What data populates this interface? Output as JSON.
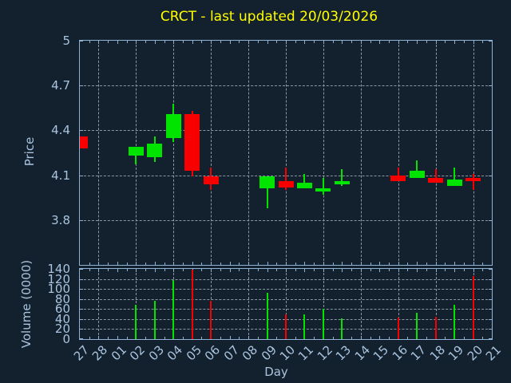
{
  "title": "CRCT - last updated 20/03/2026",
  "x_axis": {
    "label": "Day",
    "categories": [
      "27",
      "28",
      "01",
      "02",
      "03",
      "04",
      "05",
      "06",
      "07",
      "08",
      "09",
      "10",
      "11",
      "12",
      "13",
      "14",
      "15",
      "16",
      "17",
      "18",
      "19",
      "20",
      "21"
    ]
  },
  "price_axis": {
    "label": "Price",
    "tick_labels": [
      "5",
      "4.7",
      "4.4",
      "4.1",
      "3.8"
    ],
    "tick_values": [
      5.0,
      4.7,
      4.4,
      4.1,
      3.8
    ],
    "range": [
      3.5,
      5.0
    ]
  },
  "volume_axis": {
    "label": "Volume (0000)",
    "tick_labels": [
      "140",
      "120",
      "100",
      "80",
      "60",
      "40",
      "20",
      "0"
    ],
    "tick_values": [
      140,
      120,
      100,
      80,
      60,
      40,
      20,
      0
    ],
    "range": [
      0,
      140
    ]
  },
  "colors": {
    "background": "#13202e",
    "frame": "#8fb2d4",
    "grid": "#8d97a2",
    "tick_text": "#a9c4de",
    "title": "#ffff00",
    "up": "#00e400",
    "down": "#f80000"
  },
  "chart_data": [
    {
      "type": "candlestick",
      "panel": "price",
      "title": "CRCT - last updated 20/03/2026",
      "xlabel": "Day",
      "ylabel": "Price",
      "ylim": [
        3.5,
        5.0
      ],
      "yticks": [
        3.8,
        4.1,
        4.4,
        4.7,
        5.0
      ],
      "grid": true,
      "categories": [
        "27",
        "28",
        "01",
        "02",
        "03",
        "04",
        "05",
        "06",
        "07",
        "08",
        "09",
        "10",
        "11",
        "12",
        "13",
        "14",
        "15",
        "16",
        "17",
        "18",
        "19",
        "20",
        "21"
      ],
      "points": [
        {
          "day": "27",
          "open": 4.36,
          "high": 4.36,
          "low": 4.28,
          "close": 4.28,
          "direction": "down"
        },
        {
          "day": "02",
          "open": 4.23,
          "high": 4.29,
          "low": 4.17,
          "close": 4.29,
          "direction": "up"
        },
        {
          "day": "03",
          "open": 4.22,
          "high": 4.36,
          "low": 4.19,
          "close": 4.31,
          "direction": "up"
        },
        {
          "day": "04",
          "open": 4.35,
          "high": 4.58,
          "low": 4.32,
          "close": 4.51,
          "direction": "up"
        },
        {
          "day": "05",
          "open": 4.51,
          "high": 4.53,
          "low": 4.09,
          "close": 4.13,
          "direction": "down"
        },
        {
          "day": "06",
          "open": 4.09,
          "high": 4.15,
          "low": 4.0,
          "close": 4.04,
          "direction": "down"
        },
        {
          "day": "09",
          "open": 4.01,
          "high": 4.09,
          "low": 3.88,
          "close": 4.09,
          "direction": "up"
        },
        {
          "day": "10",
          "open": 4.06,
          "high": 4.15,
          "low": 4.0,
          "close": 4.02,
          "direction": "down"
        },
        {
          "day": "11",
          "open": 4.01,
          "high": 4.11,
          "low": 4.01,
          "close": 4.05,
          "direction": "up"
        },
        {
          "day": "12",
          "open": 3.99,
          "high": 4.08,
          "low": 3.97,
          "close": 4.01,
          "direction": "up"
        },
        {
          "day": "13",
          "open": 4.04,
          "high": 4.14,
          "low": 4.03,
          "close": 4.06,
          "direction": "up"
        },
        {
          "day": "16",
          "open": 4.1,
          "high": 4.15,
          "low": 4.06,
          "close": 4.06,
          "direction": "down"
        },
        {
          "day": "17",
          "open": 4.08,
          "high": 4.2,
          "low": 4.08,
          "close": 4.13,
          "direction": "up"
        },
        {
          "day": "18",
          "open": 4.08,
          "high": 4.14,
          "low": 4.05,
          "close": 4.05,
          "direction": "down"
        },
        {
          "day": "19",
          "open": 4.03,
          "high": 4.15,
          "low": 4.03,
          "close": 4.07,
          "direction": "up"
        },
        {
          "day": "20",
          "open": 4.08,
          "high": 4.11,
          "low": 4.0,
          "close": 4.06,
          "direction": "down"
        }
      ]
    },
    {
      "type": "bar",
      "panel": "volume",
      "xlabel": "Day",
      "ylabel": "Volume (0000)",
      "ylim": [
        0,
        140
      ],
      "yticks": [
        0,
        20,
        40,
        60,
        80,
        100,
        120,
        140
      ],
      "grid": true,
      "categories": [
        "27",
        "28",
        "01",
        "02",
        "03",
        "04",
        "05",
        "06",
        "07",
        "08",
        "09",
        "10",
        "11",
        "12",
        "13",
        "14",
        "15",
        "16",
        "17",
        "18",
        "19",
        "20",
        "21"
      ],
      "points": [
        {
          "day": "02",
          "value": 69,
          "direction": "up"
        },
        {
          "day": "03",
          "value": 76,
          "direction": "up"
        },
        {
          "day": "04",
          "value": 118,
          "direction": "up"
        },
        {
          "day": "05",
          "value": 138,
          "direction": "down"
        },
        {
          "day": "06",
          "value": 76,
          "direction": "down"
        },
        {
          "day": "09",
          "value": 92,
          "direction": "up"
        },
        {
          "day": "10",
          "value": 49,
          "direction": "down"
        },
        {
          "day": "11",
          "value": 50,
          "direction": "up"
        },
        {
          "day": "12",
          "value": 61,
          "direction": "up"
        },
        {
          "day": "13",
          "value": 42,
          "direction": "up"
        },
        {
          "day": "16",
          "value": 43,
          "direction": "down"
        },
        {
          "day": "17",
          "value": 52,
          "direction": "up"
        },
        {
          "day": "18",
          "value": 45,
          "direction": "down"
        },
        {
          "day": "19",
          "value": 69,
          "direction": "up"
        },
        {
          "day": "20",
          "value": 126,
          "direction": "down"
        }
      ]
    }
  ]
}
